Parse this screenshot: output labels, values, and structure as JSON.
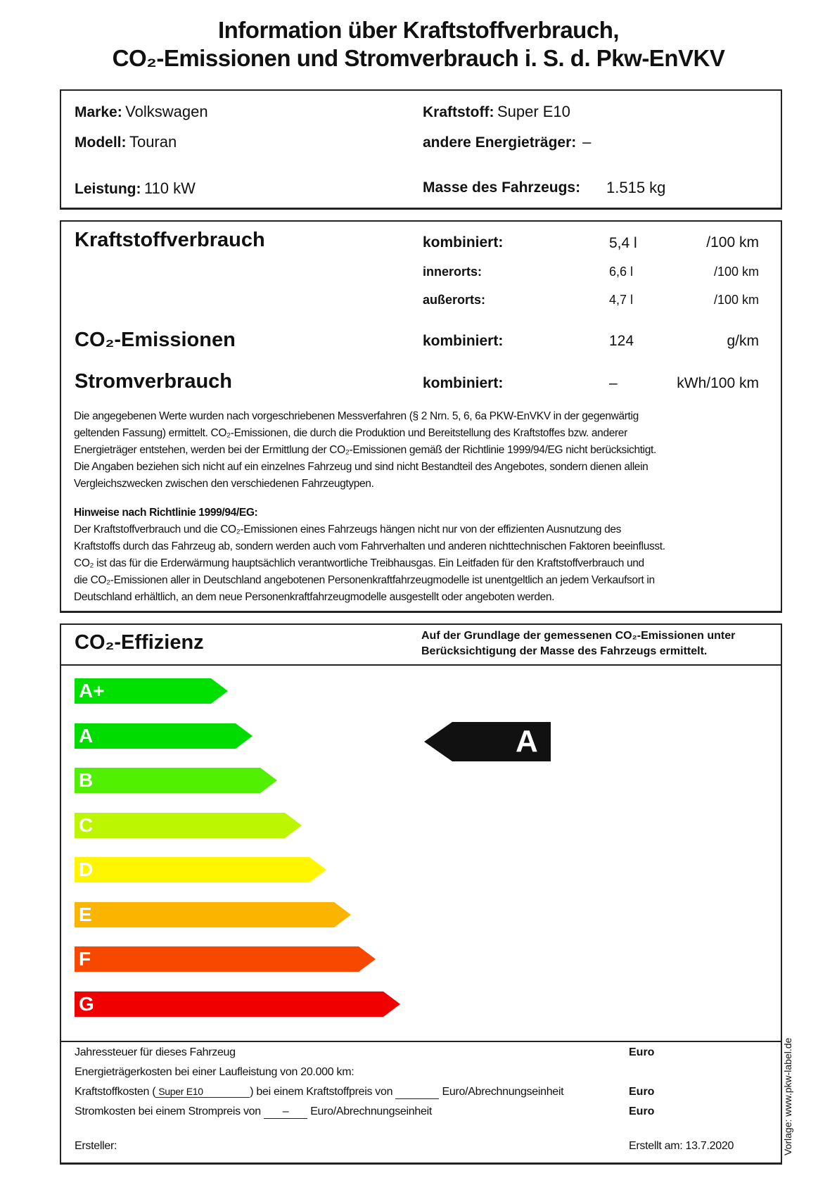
{
  "header": {
    "title_line1": "Information über Kraftstoffverbrauch,",
    "title_line2": "CO₂-Emissionen und Stromverbrauch i. S. d. Pkw-EnVKV"
  },
  "vehicle": {
    "marke_label": "Marke:",
    "marke": "Volkswagen",
    "modell_label": "Modell:",
    "modell": "Touran",
    "leistung_label": "Leistung:",
    "leistung": "110 kW",
    "kraftstoff_label": "Kraftstoff:",
    "kraftstoff": "Super E10",
    "andere_label": "andere Energieträger:",
    "andere": "–",
    "masse_label": "Masse des Fahrzeugs:",
    "masse": "1.515 kg"
  },
  "consumption": {
    "fuel_heading": "Kraftstoffverbrauch",
    "combined_label": "kombiniert:",
    "combined": "5,4 l",
    "combined_unit": "/100 km",
    "urban_label": "innerorts:",
    "urban": "6,6 l",
    "urban_unit": "/100 km",
    "extra_label": "außerorts:",
    "extra": "4,7 l",
    "extra_unit": "/100 km",
    "co2_heading": "CO₂-Emissionen",
    "co2_label": "kombiniert:",
    "co2": "124",
    "co2_unit": "g/km",
    "power_heading": "Stromverbrauch",
    "power_label": "kombiniert:",
    "power": "–",
    "power_unit": "kWh/100 km"
  },
  "notes": {
    "para1": [
      "Die angegebenen Werte wurden nach vorgeschriebenen Messverfahren (§ 2 Nrn. 5, 6, 6a PKW-EnVKV in der gegenwärtig",
      "geltenden Fassung) ermittelt. CO₂-Emissionen, die durch die Produktion und Bereitstellung des Kraftstoffes bzw. anderer",
      "Energieträger entstehen, werden bei der Ermittlung der CO₂-Emissionen gemäß der Richtlinie 1999/94/EG nicht berücksichtigt.",
      "Die Angaben beziehen sich nicht auf ein einzelnes Fahrzeug und sind nicht Bestandteil des Angebotes, sondern dienen allein",
      "Vergleichszwecken zwischen den verschiedenen Fahrzeugtypen."
    ],
    "hinweise_heading": "Hinweise nach Richtlinie 1999/94/EG:",
    "para2": [
      "Der Kraftstoffverbrauch und die CO₂-Emissionen eines Fahrzeugs hängen nicht nur von der effizienten Ausnutzung des",
      "Kraftstoffs durch das Fahrzeug ab, sondern werden auch vom Fahrverhalten und anderen nichttechnischen Faktoren beeinflusst.",
      "CO₂ ist das für die Erderwärmung hauptsächlich verantwortliche Treibhausgas. Ein Leitfaden für den Kraftstoffverbrauch und",
      "die CO₂-Emissionen aller in Deutschland angebotenen Personenkraftfahrzeugmodelle ist unentgeltlich an jedem Verkaufsort in",
      "Deutschland erhältlich, an dem neue Personenkraftfahrzeugmodelle ausgestellt oder angeboten werden."
    ]
  },
  "efficiency": {
    "heading": "CO₂-Effizienz",
    "note_line1": "Auf der Grundlage der gemessenen CO₂-Emissionen unter",
    "note_line2": "Berücksichtigung der Masse des Fahrzeugs ermittelt.",
    "classes": [
      {
        "label": "A+",
        "color": "#00e000"
      },
      {
        "label": "A",
        "color": "#00dc00"
      },
      {
        "label": "B",
        "color": "#50f000"
      },
      {
        "label": "C",
        "color": "#bcf600"
      },
      {
        "label": "D",
        "color": "#fff600"
      },
      {
        "label": "E",
        "color": "#fbb400"
      },
      {
        "label": "F",
        "color": "#f84800"
      },
      {
        "label": "G",
        "color": "#f00000"
      }
    ],
    "rating": "A",
    "rating_color": "#111111"
  },
  "costs": {
    "jahressteuer": "Jahressteuer für dieses Fahrzeug",
    "energie": "Energieträgerkosten bei einer Laufleistung von 20.000 km:",
    "kraftstoff_pre": "Kraftstoffkosten (",
    "kraftstoff_fuel": "Super E10",
    "kraftstoff_mid": ") bei einem Kraftstoffpreis von",
    "unit": "Euro/Abrechnungseinheit",
    "strom_pre": "Stromkosten bei einem Strompreis von",
    "strom_price": "–",
    "euro": "Euro",
    "ersteller": "Ersteller:",
    "erstellt_am": "Erstellt am: 13.7.2020"
  },
  "vorlage": "Vorlage: www.pkw-label.de"
}
